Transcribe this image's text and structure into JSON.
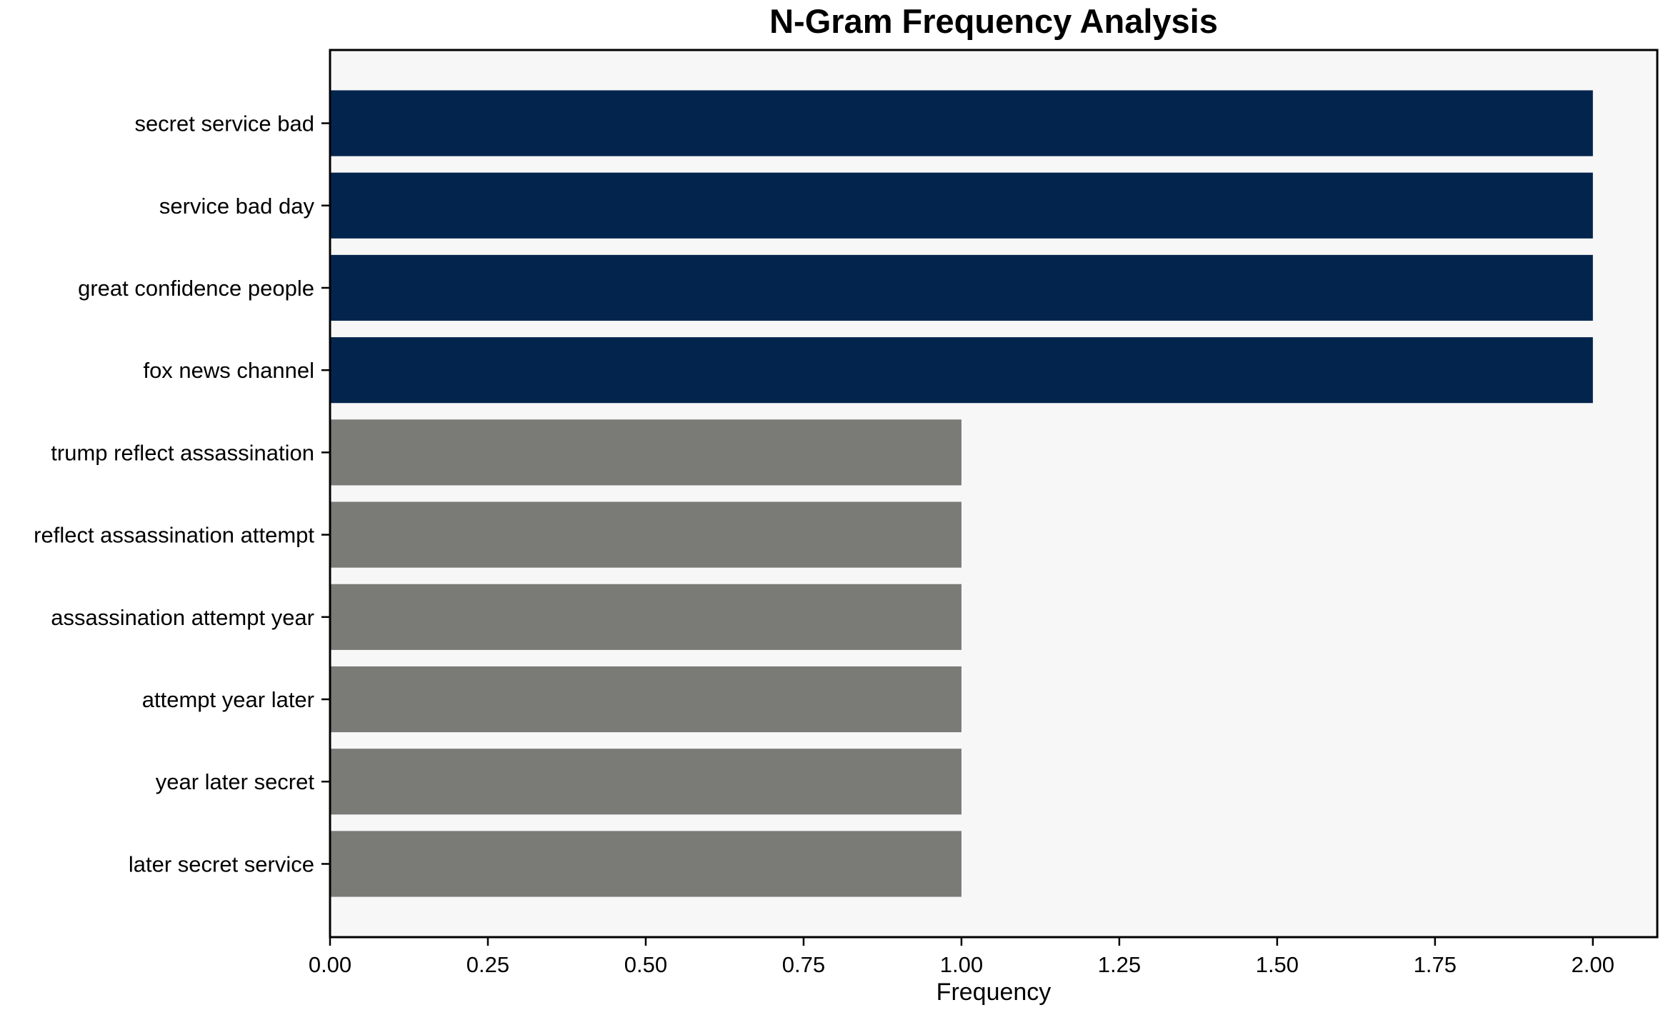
{
  "chart_data": {
    "type": "bar",
    "orientation": "horizontal",
    "title": "N-Gram Frequency Analysis",
    "xlabel": "Frequency",
    "ylabel": "",
    "categories": [
      "secret service bad",
      "service bad day",
      "great confidence people",
      "fox news channel",
      "trump reflect assassination",
      "reflect assassination attempt",
      "assassination attempt year",
      "attempt year later",
      "year later secret",
      "later secret service"
    ],
    "values": [
      2,
      2,
      2,
      2,
      1,
      1,
      1,
      1,
      1,
      1
    ],
    "bar_colors": [
      "#03254d",
      "#03254d",
      "#03254d",
      "#03254d",
      "#7a7a77",
      "#7a7a77",
      "#7a7a77",
      "#7a7a77",
      "#7a7a77",
      "#7a7a77"
    ],
    "xlim": [
      0,
      2.102
    ],
    "xticks": [
      0,
      0.25,
      0.5,
      0.75,
      1.0,
      1.25,
      1.5,
      1.75,
      2.0
    ],
    "xtick_labels": [
      "0.00",
      "0.25",
      "0.50",
      "0.75",
      "1.00",
      "1.25",
      "1.50",
      "1.75",
      "2.00"
    ],
    "grid": false,
    "legend": null,
    "colors": {
      "high_freq_bar": "#03254d",
      "low_freq_bar": "#7a7a77",
      "plot_background": "#f7f7f7",
      "figure_background": "#ffffff",
      "axis": "#000000",
      "text": "#000000"
    }
  }
}
